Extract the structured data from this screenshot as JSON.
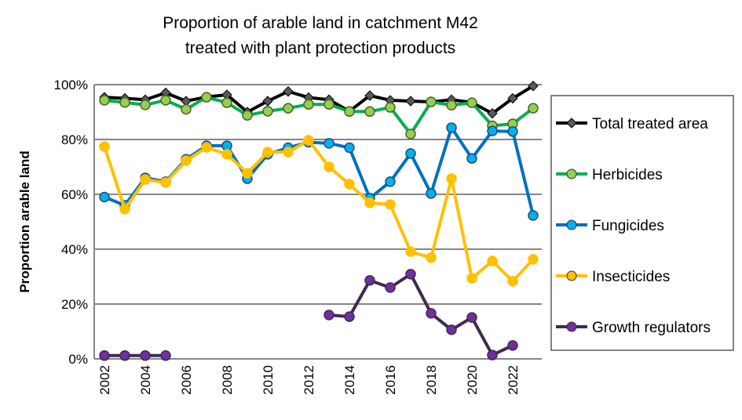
{
  "chart_data": {
    "type": "line",
    "title": [
      "Proportion of arable land in catchment M42",
      "treated with plant protection products"
    ],
    "ylabel": "Proportion arable land",
    "xlabel": "",
    "ylim": [
      0,
      100
    ],
    "yticks": [
      "0%",
      "20%",
      "40%",
      "60%",
      "80%",
      "100%"
    ],
    "xticks": [
      "2002",
      "2004",
      "2006",
      "2008",
      "2010",
      "2012",
      "2014",
      "2016",
      "2018",
      "2020",
      "2022"
    ],
    "grid": true,
    "legend_position": "right",
    "x": [
      2002,
      2003,
      2004,
      2005,
      2006,
      2007,
      2008,
      2009,
      2010,
      2011,
      2012,
      2013,
      2014,
      2015,
      2016,
      2017,
      2018,
      2019,
      2020,
      2021,
      2022,
      2023
    ],
    "series": [
      {
        "name": "Total treated area",
        "color": "#000000",
        "marker": "diamond",
        "marker_color": "#595959",
        "values": [
          95.4,
          95,
          94.5,
          97,
          94,
          95.5,
          96.3,
          90,
          94,
          97.5,
          95.3,
          94.5,
          90.3,
          96,
          94.3,
          94,
          93.7,
          94.5,
          93.5,
          89.5,
          95,
          99.5
        ]
      },
      {
        "name": "Herbicides",
        "color": "#00B050",
        "marker": "circle",
        "marker_color": "#92D050",
        "values": [
          94.3,
          93.5,
          92.6,
          94.3,
          91,
          95.4,
          93.4,
          88.8,
          90.3,
          91.4,
          92.8,
          92.8,
          90.2,
          90.2,
          91.7,
          82,
          93.7,
          92.5,
          93.4,
          85,
          85.7,
          91.4
        ]
      },
      {
        "name": "Fungicides",
        "color": "#0070C0",
        "marker": "circle",
        "marker_color": "#00B0F0",
        "values": [
          59,
          56,
          66,
          64.6,
          72.8,
          77.7,
          77.7,
          65.7,
          74.6,
          77,
          79,
          78.6,
          77,
          58.6,
          64.6,
          74.9,
          60.3,
          84.3,
          73.1,
          83.1,
          82.9,
          52.3
        ]
      },
      {
        "name": "Insecticides",
        "color": "#FFC000",
        "marker": "circle",
        "marker_color": "#FFC000",
        "values": [
          77.4,
          54.6,
          65.4,
          64.3,
          72.3,
          77.1,
          74.6,
          67.7,
          75.4,
          75.4,
          79.7,
          70,
          63.7,
          56.9,
          56.3,
          39.1,
          36.9,
          65.7,
          29.4,
          35.7,
          28.3,
          36.3
        ]
      },
      {
        "name": "Growth regulators",
        "color": "#3F2B4F",
        "marker": "circle",
        "marker_color": "#7030A0",
        "values": [
          1.2,
          1.2,
          1.2,
          1.2,
          null,
          null,
          null,
          null,
          null,
          null,
          null,
          16,
          15.4,
          28.6,
          26,
          30.9,
          16.6,
          10.6,
          15.1,
          1.4,
          4.9,
          null
        ]
      }
    ]
  }
}
